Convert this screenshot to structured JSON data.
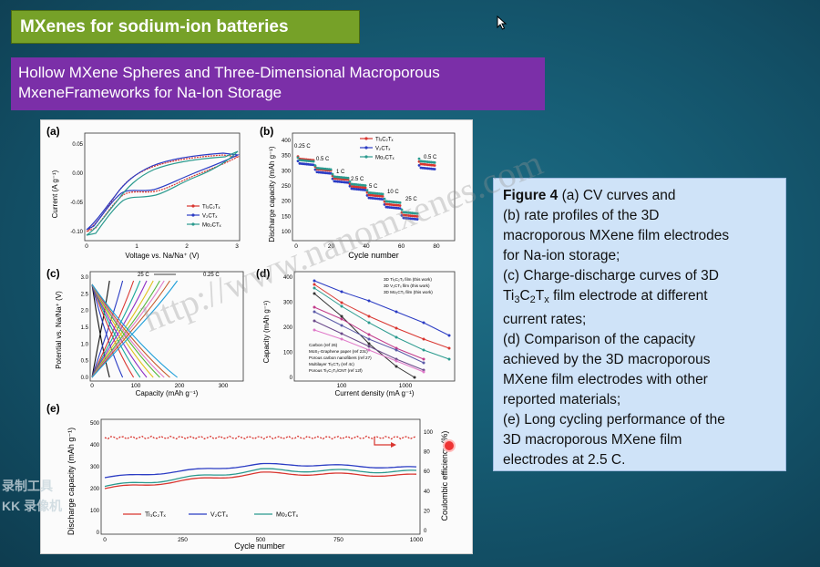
{
  "slide": {
    "title": "MXenes for sodium-ion batteries",
    "subtitle_line1": "Hollow MXene Spheres and Three-Dimensional Macroporous",
    "subtitle_line2": "MxeneFrameworks for Na-Ion Storage"
  },
  "caption": {
    "fig": "Figure 4",
    "a": " (a) CV curves and",
    "b1": "(b) rate profiles of the 3D",
    "b2": "macroporous MXene film electrodes",
    "b3": "for Na-ion storage;",
    "c1": "(c) Charge-discharge curves of 3D",
    "c2_pre": "Ti",
    "c2_s1": "3",
    "c2_mid": "C",
    "c2_s2": "2",
    "c2_mid2": "T",
    "c2_s3": "x",
    "c2_post": " film electrode at different",
    "c3": "current rates;",
    "d1": "(d) Comparison of the capacity",
    "d2": "achieved by the 3D macroporous",
    "d3": "MXene film electrodes with other",
    "d4": "reported materials;",
    "e1": "(e) Long cycling performance of the",
    "e2": "3D macroporous MXene film",
    "e3": "electrodes at 2.5 C."
  },
  "watermarks": {
    "left1": "录制工具",
    "left2": "KK 录像机",
    "url": "http://www.nanomxenes.com"
  },
  "panel_a": {
    "label": "(a)",
    "xlabel": "Voltage vs. Na/Na⁺ (V)",
    "ylabel": "Current (A g⁻¹)",
    "xticks": [
      "0",
      "1",
      "2",
      "3"
    ],
    "yticks": [
      "0.05",
      "0.00",
      "-0.05",
      "-0.10"
    ],
    "legend": [
      "Ti₃C₂Tₓ",
      "V₂CTₓ",
      "Mo₂CTₓ"
    ]
  },
  "panel_b": {
    "label": "(b)",
    "xlabel": "Cycle number",
    "ylabel": "Discharge capacity (mAh g⁻¹)",
    "xticks": [
      "0",
      "20",
      "40",
      "60",
      "80"
    ],
    "yticks": [
      "100",
      "150",
      "200",
      "250",
      "300",
      "350",
      "400"
    ],
    "legend": [
      "Ti₃C₂Tₓ",
      "V₂CTₓ",
      "Mo₂CTₓ"
    ],
    "rates": [
      "0.25 C",
      "0.5 C",
      "1 C",
      "2.5 C",
      "5 C",
      "10 C",
      "25 C",
      "0.5 C"
    ]
  },
  "panel_c": {
    "label": "(c)",
    "xlabel": "Capacity (mAh g⁻¹)",
    "ylabel": "Potential vs. Na/Na⁺ (V)",
    "xticks": [
      "0",
      "100",
      "200",
      "300"
    ],
    "yticks": [
      "0.0",
      "0.5",
      "1.0",
      "1.5",
      "2.0",
      "2.5",
      "3.0"
    ],
    "rate_left": "25 C",
    "rate_right": "0.25 C"
  },
  "panel_d": {
    "label": "(d)",
    "xlabel": "Current density (mA g⁻¹)",
    "ylabel": "Capacity (mAh g⁻¹)",
    "xticks": [
      "100",
      "1000"
    ],
    "yticks": [
      "0",
      "100",
      "200",
      "300",
      "400"
    ],
    "legend_top": [
      "3D Ti₃C₂Tₓ film (this work)",
      "3D V₂CTₓ film (this work)",
      "3D Mo₂CTₓ film (this work)"
    ],
    "legend_bottom": [
      "Carbon (ref 26)",
      "MoS₂-Graphene paper (ref 23c)",
      "Porous carbon nanofibers (ref 27)",
      "Multilayer Ti₃CTₓ (ref 4c)",
      "Porous Ti₃C₂Tₓ/CNT (ref 12f)"
    ]
  },
  "panel_e": {
    "label": "(e)",
    "xlabel": "Cycle number",
    "ylabel": "Discharge capacity (mAh g⁻¹)",
    "y2label": "Coulombic efficiency (%)",
    "xticks": [
      "0",
      "250",
      "500",
      "750",
      "1000"
    ],
    "yticks": [
      "0",
      "100",
      "200",
      "300",
      "400",
      "500"
    ],
    "y2ticks": [
      "0",
      "20",
      "40",
      "60",
      "80",
      "100"
    ],
    "legend": [
      "Ti₃C₂Tₓ",
      "V₂CTₓ",
      "Mo₂CTₓ"
    ]
  },
  "colors": {
    "ti": "#d9352f",
    "v": "#2b3cc4",
    "mo": "#2a9a8e"
  }
}
